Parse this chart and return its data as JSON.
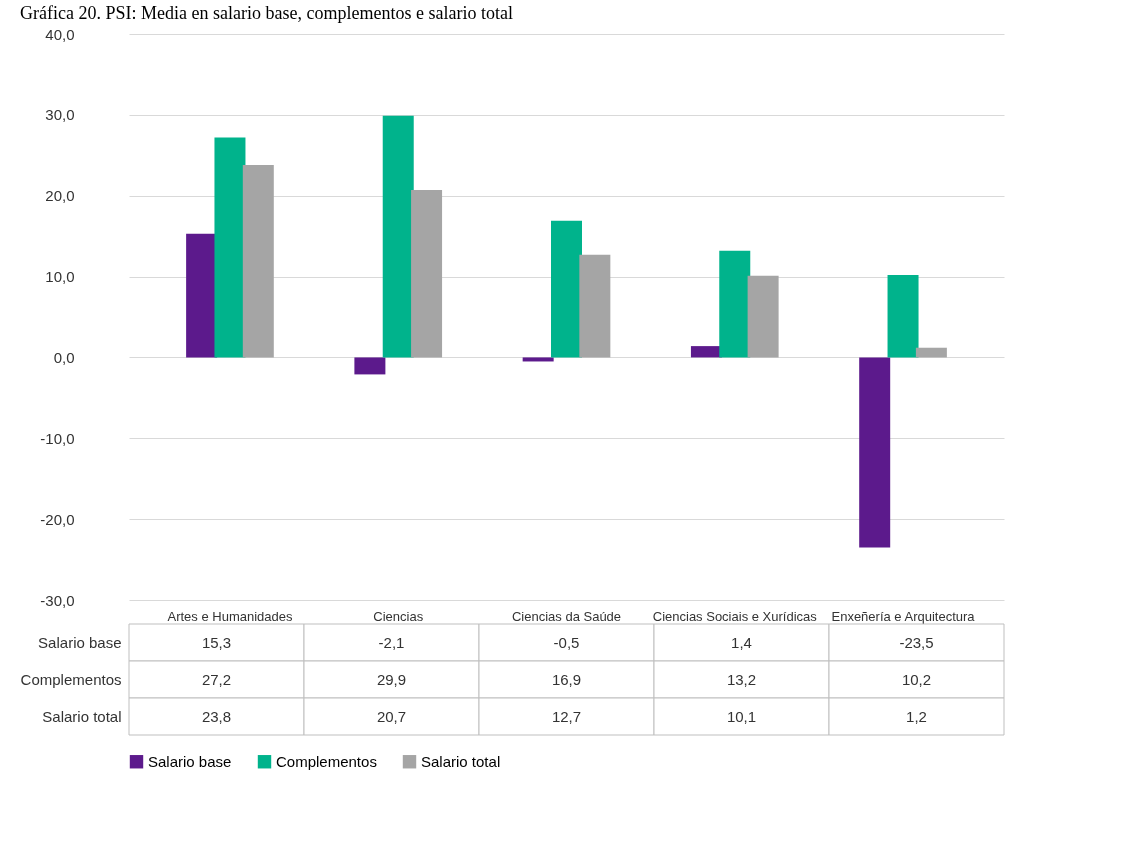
{
  "chart_data": {
    "type": "bar",
    "title": "Gráfica 20. PSI: Media en salario base, complementos e salario total",
    "categories": [
      "Artes e Humanidades",
      "Ciencias",
      "Ciencias da Saúde",
      "Ciencias Sociais e Xurídicas",
      "Enxeñería e Arquitectura"
    ],
    "series": [
      {
        "name": "Salario base",
        "color": "#5c1a8c",
        "values": [
          15.3,
          -2.1,
          -0.5,
          1.4,
          -23.5
        ],
        "value_labels": [
          "15,3",
          "-2,1",
          "-0,5",
          "1,4",
          "-23,5"
        ]
      },
      {
        "name": "Complementos",
        "color": "#00b38c",
        "values": [
          27.2,
          29.9,
          16.9,
          13.2,
          10.2
        ],
        "value_labels": [
          "27,2",
          "29,9",
          "16,9",
          "13,2",
          "10,2"
        ]
      },
      {
        "name": "Salario total",
        "color": "#a5a5a5",
        "values": [
          23.8,
          20.7,
          12.7,
          10.1,
          1.2
        ],
        "value_labels": [
          "23,8",
          "20,7",
          "12,7",
          "10,1",
          "1,2"
        ]
      }
    ],
    "ylim": [
      -30,
      40
    ],
    "yticks": [
      {
        "value": -30,
        "label": "-30,0"
      },
      {
        "value": -20,
        "label": "-20,0"
      },
      {
        "value": -10,
        "label": "-10,0"
      },
      {
        "value": 0,
        "label": "0,0"
      },
      {
        "value": 10,
        "label": "10,0"
      },
      {
        "value": 20,
        "label": "20,0"
      },
      {
        "value": 30,
        "label": "30,0"
      },
      {
        "value": 40,
        "label": "40,0"
      }
    ],
    "grid": "y",
    "legend": "bottom"
  }
}
